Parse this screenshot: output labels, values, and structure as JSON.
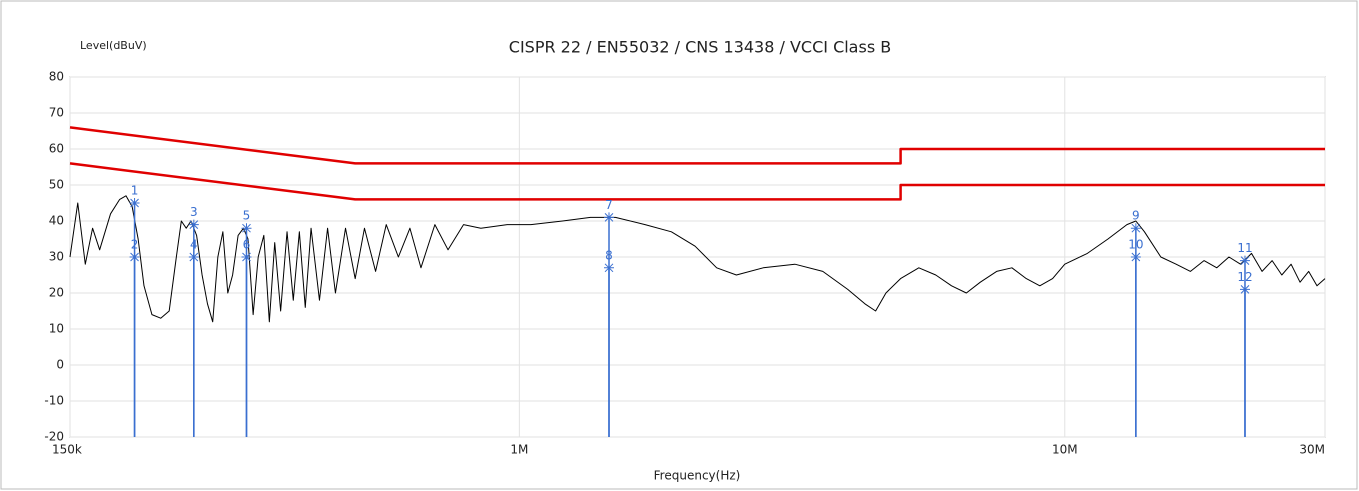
{
  "chart_data": {
    "type": "line",
    "title": "CISPR 22 / EN55032 / CNS 13438 / VCCI Class B",
    "y_label": "Level(dBuV)",
    "x_label": "Frequency(Hz)",
    "xscale": "log",
    "grid": true,
    "xlim": [
      150000,
      30000000
    ],
    "xticks": [
      {
        "value": 150000,
        "label": "150k"
      },
      {
        "value": 1000000,
        "label": "1M"
      },
      {
        "value": 10000000,
        "label": "10M"
      },
      {
        "value": 30000000,
        "label": "30M"
      }
    ],
    "ylim": [
      -20,
      80
    ],
    "yticks": [
      -20,
      -10,
      0,
      10,
      20,
      30,
      40,
      50,
      60,
      70,
      80
    ],
    "series": [
      {
        "color": "#000000",
        "width": 1,
        "x": [
          150000,
          155000,
          160000,
          165000,
          170000,
          178000,
          185000,
          190000,
          195000,
          200000,
          205000,
          212000,
          220000,
          228000,
          235000,
          240000,
          245000,
          250000,
          256000,
          262000,
          268000,
          274000,
          280000,
          286000,
          292000,
          298000,
          305000,
          312000,
          318000,
          325000,
          332000,
          340000,
          348000,
          356000,
          365000,
          375000,
          385000,
          395000,
          405000,
          415000,
          430000,
          445000,
          460000,
          480000,
          500000,
          520000,
          545000,
          570000,
          600000,
          630000,
          660000,
          700000,
          740000,
          790000,
          850000,
          950000,
          1050000,
          1200000,
          1350000,
          1500000,
          1700000,
          1900000,
          2100000,
          2300000,
          2500000,
          2800000,
          3200000,
          3600000,
          4000000,
          4300000,
          4500000,
          4700000,
          5000000,
          5400000,
          5800000,
          6200000,
          6600000,
          7000000,
          7500000,
          8000000,
          8500000,
          9000000,
          9500000,
          10000000,
          11000000,
          12000000,
          13000000,
          13500000,
          14000000,
          15000000,
          16000000,
          17000000,
          18000000,
          19000000,
          20000000,
          21000000,
          22000000,
          23000000,
          24000000,
          25000000,
          26000000,
          27000000,
          28000000,
          29000000,
          30000000
        ],
        "values": [
          30,
          45,
          28,
          38,
          32,
          42,
          46,
          47,
          44,
          35,
          22,
          14,
          13,
          15,
          30,
          40,
          38,
          40,
          36,
          25,
          17,
          12,
          30,
          37,
          20,
          25,
          36,
          38,
          35,
          14,
          30,
          36,
          12,
          34,
          15,
          37,
          18,
          37,
          16,
          38,
          18,
          38,
          20,
          38,
          24,
          38,
          26,
          39,
          30,
          38,
          27,
          39,
          32,
          39,
          38,
          39,
          39,
          40,
          41,
          41,
          39,
          37,
          33,
          27,
          25,
          27,
          28,
          26,
          21,
          17,
          15,
          20,
          24,
          27,
          25,
          22,
          20,
          23,
          26,
          27,
          24,
          22,
          24,
          28,
          31,
          35,
          39,
          40,
          37,
          30,
          28,
          26,
          29,
          27,
          30,
          28,
          31,
          26,
          29,
          25,
          28,
          23,
          26,
          22,
          24
        ]
      },
      {
        "color": "#e00000",
        "width": 2.5,
        "x": [
          150000,
          500000,
          5000000,
          5000000,
          30000000
        ],
        "values": [
          66,
          56,
          56,
          60,
          60
        ]
      },
      {
        "color": "#e00000",
        "width": 2.5,
        "x": [
          150000,
          500000,
          5000000,
          5000000,
          30000000
        ],
        "values": [
          56,
          46,
          46,
          50,
          50
        ]
      }
    ],
    "marker_color": "#3a6fd0",
    "markers": [
      {
        "label": "1",
        "x": 197000,
        "value": 45
      },
      {
        "label": "2",
        "x": 197000,
        "value": 30
      },
      {
        "label": "3",
        "x": 253000,
        "value": 39
      },
      {
        "label": "4",
        "x": 253000,
        "value": 30
      },
      {
        "label": "5",
        "x": 316000,
        "value": 38
      },
      {
        "label": "6",
        "x": 316000,
        "value": 30
      },
      {
        "label": "7",
        "x": 1460000,
        "value": 41
      },
      {
        "label": "8",
        "x": 1460000,
        "value": 27
      },
      {
        "label": "9",
        "x": 13500000,
        "value": 38
      },
      {
        "label": "10",
        "x": 13500000,
        "value": 30
      },
      {
        "label": "11",
        "x": 21400000,
        "value": 29
      },
      {
        "label": "12",
        "x": 21400000,
        "value": 21
      }
    ]
  }
}
